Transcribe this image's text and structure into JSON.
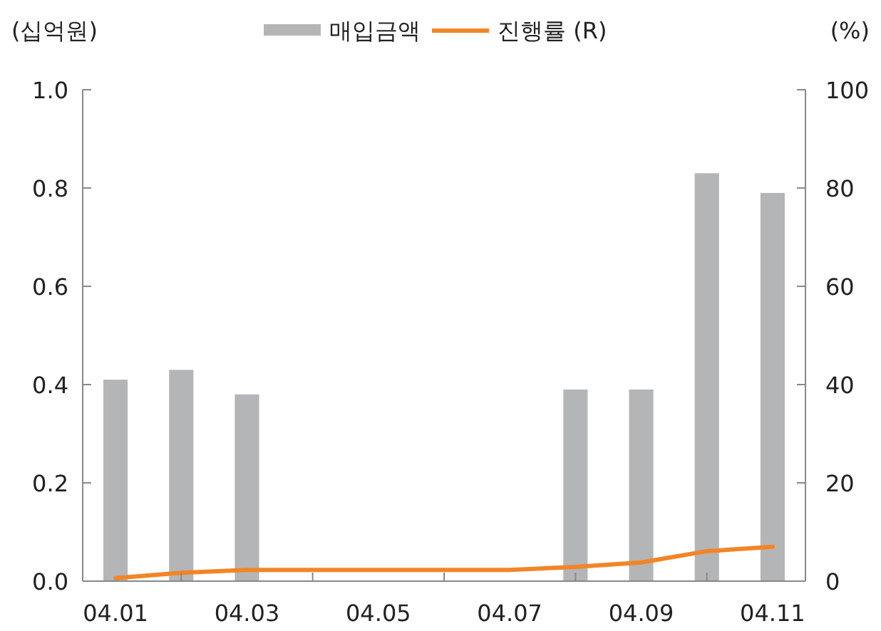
{
  "chart_data": {
    "type": "bar",
    "ylabel": "(십억원)",
    "y2label": "(%)",
    "categories": [
      "04.01",
      null,
      "04.03",
      null,
      "04.05",
      null,
      "04.07",
      null,
      "04.09",
      null,
      "04.11"
    ],
    "series": [
      {
        "name": "매입금액",
        "color": "#b4b5b7",
        "values": [
          0.41,
          0.43,
          0.38,
          null,
          null,
          null,
          null,
          0.39,
          0.39,
          0.83,
          0.79
        ]
      },
      {
        "name": "진행률 (R)",
        "type": "line",
        "axis": "y2",
        "color": "#f28526",
        "values": [
          0.6,
          1.7,
          2.3,
          2.3,
          2.3,
          2.3,
          2.3,
          2.9,
          3.8,
          6.1,
          7.0
        ]
      }
    ],
    "ylim": [
      0,
      1
    ],
    "yticks": [
      {
        "value": 0,
        "label": "0.0"
      },
      0.2,
      0.4,
      0.6,
      0.8,
      {
        "value": 1,
        "label": "1.0"
      }
    ],
    "y2lim": [
      0,
      100
    ],
    "y2ticks": [
      0,
      20,
      40,
      60,
      80,
      100
    ],
    "grid": false,
    "legend": "top",
    "line_style": "solid",
    "marker": "none"
  }
}
